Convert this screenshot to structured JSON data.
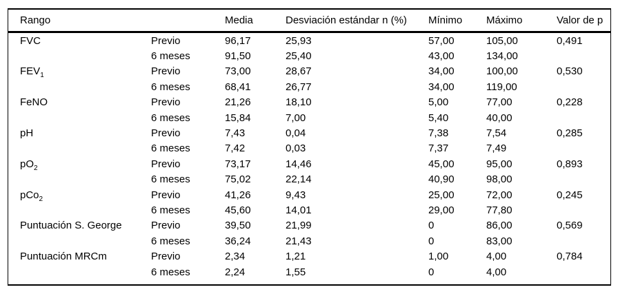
{
  "table": {
    "columns": [
      "Rango",
      "",
      "Media",
      "Desviación estándar n (%)",
      "Mínimo",
      "Máximo",
      "Valor de p"
    ],
    "rows": [
      {
        "rango": "FVC",
        "rango_sub": "",
        "periodo": "Previo",
        "media": "96,17",
        "desviacion": "25,93",
        "minimo": "57,00",
        "maximo": "105,00",
        "valor_p": "0,491"
      },
      {
        "rango": "",
        "rango_sub": "",
        "periodo": "6 meses",
        "media": "91,50",
        "desviacion": "25,40",
        "minimo": "43,00",
        "maximo": "134,00",
        "valor_p": ""
      },
      {
        "rango": "FEV",
        "rango_sub": "1",
        "periodo": "Previo",
        "media": "73,00",
        "desviacion": "28,67",
        "minimo": "34,00",
        "maximo": "100,00",
        "valor_p": "0,530"
      },
      {
        "rango": "",
        "rango_sub": "",
        "periodo": "6 meses",
        "media": "68,41",
        "desviacion": "26,77",
        "minimo": "34,00",
        "maximo": "119,00",
        "valor_p": ""
      },
      {
        "rango": "FeNO",
        "rango_sub": "",
        "periodo": "Previo",
        "media": "21,26",
        "desviacion": "18,10",
        "minimo": "5,00",
        "maximo": "77,00",
        "valor_p": "0,228"
      },
      {
        "rango": "",
        "rango_sub": "",
        "periodo": "6 meses",
        "media": "15,84",
        "desviacion": "7,00",
        "minimo": "5,40",
        "maximo": "40,00",
        "valor_p": ""
      },
      {
        "rango": "pH",
        "rango_sub": "",
        "periodo": "Previo",
        "media": "7,43",
        "desviacion": "0,04",
        "minimo": "7,38",
        "maximo": "7,54",
        "valor_p": "0,285"
      },
      {
        "rango": "",
        "rango_sub": "",
        "periodo": "6 meses",
        "media": "7,42",
        "desviacion": "0,03",
        "minimo": "7,37",
        "maximo": "7,49",
        "valor_p": ""
      },
      {
        "rango": "pO",
        "rango_sub": "2",
        "periodo": "Previo",
        "media": "73,17",
        "desviacion": "14,46",
        "minimo": "45,00",
        "maximo": "95,00",
        "valor_p": "0,893"
      },
      {
        "rango": "",
        "rango_sub": "",
        "periodo": "6 meses",
        "media": "75,02",
        "desviacion": "22,14",
        "minimo": "40,90",
        "maximo": "98,00",
        "valor_p": ""
      },
      {
        "rango": "pCo",
        "rango_sub": "2",
        "periodo": "Previo",
        "media": "41,26",
        "desviacion": "9,43",
        "minimo": "25,00",
        "maximo": "72,00",
        "valor_p": "0,245"
      },
      {
        "rango": "",
        "rango_sub": "",
        "periodo": "6 meses",
        "media": "45,60",
        "desviacion": "14,01",
        "minimo": "29,00",
        "maximo": "77,80",
        "valor_p": ""
      },
      {
        "rango": "Puntuación S. George",
        "rango_sub": "",
        "periodo": "Previo",
        "media": "39,50",
        "desviacion": "21,99",
        "minimo": "0",
        "maximo": "86,00",
        "valor_p": "0,569"
      },
      {
        "rango": "",
        "rango_sub": "",
        "periodo": "6 meses",
        "media": "36,24",
        "desviacion": "21,43",
        "minimo": "0",
        "maximo": "83,00",
        "valor_p": ""
      },
      {
        "rango": "Puntuación MRCm",
        "rango_sub": "",
        "periodo": "Previo",
        "media": "2,34",
        "desviacion": "1,21",
        "minimo": "1,00",
        "maximo": "4,00",
        "valor_p": "0,784"
      },
      {
        "rango": "",
        "rango_sub": "",
        "periodo": "6 meses",
        "media": "2,24",
        "desviacion": "1,55",
        "minimo": "0",
        "maximo": "4,00",
        "valor_p": ""
      }
    ]
  },
  "colors": {
    "text": "#000000",
    "rule": "#000000",
    "background": "#ffffff"
  }
}
